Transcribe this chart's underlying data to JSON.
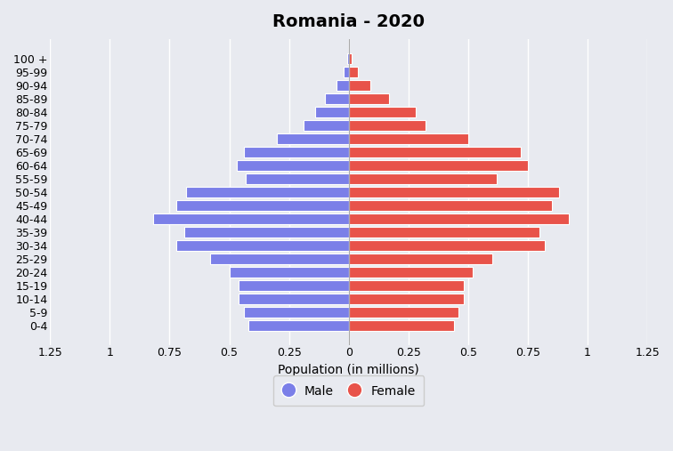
{
  "title": "Romania - 2020",
  "xlabel": "Population (in millions)",
  "age_groups": [
    "0-4",
    "5-9",
    "10-14",
    "15-19",
    "20-24",
    "25-29",
    "30-34",
    "35-39",
    "40-44",
    "45-49",
    "50-54",
    "55-59",
    "60-64",
    "65-69",
    "70-74",
    "75-79",
    "80-84",
    "85-89",
    "90-94",
    "95-99",
    "100 +"
  ],
  "male": [
    0.42,
    0.44,
    0.46,
    0.46,
    0.5,
    0.58,
    0.72,
    0.69,
    0.82,
    0.72,
    0.68,
    0.43,
    0.47,
    0.44,
    0.3,
    0.19,
    0.14,
    0.1,
    0.05,
    0.02,
    0.005
  ],
  "female": [
    0.44,
    0.46,
    0.48,
    0.48,
    0.52,
    0.6,
    0.82,
    0.8,
    0.92,
    0.85,
    0.88,
    0.62,
    0.75,
    0.72,
    0.5,
    0.32,
    0.28,
    0.17,
    0.09,
    0.04,
    0.012
  ],
  "male_color": "#7b7fe8",
  "female_color": "#e8534a",
  "bar_edge_color": "#ffffff",
  "background_color": "#e8eaf0",
  "grid_color": "#ffffff",
  "xlim": [
    -1.25,
    1.25
  ],
  "xticks": [
    -1.25,
    -1.0,
    -0.75,
    -0.5,
    -0.25,
    0,
    0.25,
    0.5,
    0.75,
    1.0,
    1.25
  ],
  "xtick_labels": [
    "1.25",
    "1",
    "0.75",
    "0.5",
    "0.25",
    "0",
    "0.25",
    "0.5",
    "0.75",
    "1",
    "1.25"
  ],
  "legend_male": "Male",
  "legend_female": "Female",
  "bar_height": 0.82,
  "title_fontsize": 14,
  "axis_fontsize": 10,
  "tick_fontsize": 9,
  "legend_fontsize": 10
}
